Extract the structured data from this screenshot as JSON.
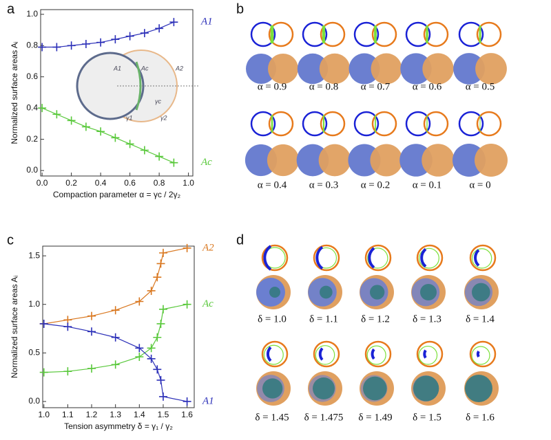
{
  "panel_letters": [
    "a",
    "b",
    "c",
    "d"
  ],
  "chart_data": [
    {
      "type": "line",
      "x_label": "Compaction parameter α = γc / 2γ₂",
      "y_label": "Normalized surface areas Aᵢ",
      "x": [
        0,
        0.1,
        0.2,
        0.3,
        0.4,
        0.5,
        0.6,
        0.7,
        0.8,
        0.9
      ],
      "series": [
        {
          "name": "A1",
          "color": "#2b2fb8",
          "values": [
            0.79,
            0.79,
            0.8,
            0.81,
            0.82,
            0.84,
            0.86,
            0.88,
            0.91,
            0.95
          ]
        },
        {
          "name": "Ac",
          "color": "#58c83a",
          "values": [
            0.4,
            0.36,
            0.32,
            0.28,
            0.25,
            0.21,
            0.17,
            0.13,
            0.09,
            0.05
          ]
        }
      ],
      "xlim": [
        -0.01,
        1.03
      ],
      "ylim": [
        -0.035,
        1.03
      ],
      "xticks": [
        {
          "value": 0,
          "label": "0.0"
        },
        {
          "value": 0.2,
          "label": "0.2"
        },
        {
          "value": 0.4,
          "label": "0.4"
        },
        {
          "value": 0.6,
          "label": "0.6"
        },
        {
          "value": 0.8,
          "label": "0.8"
        },
        {
          "value": 1,
          "label": "1.0"
        }
      ],
      "yticks": [
        {
          "value": 0,
          "label": "0.0"
        },
        {
          "value": 0.2,
          "label": "0.2"
        },
        {
          "value": 0.4,
          "label": "0.4"
        },
        {
          "value": 0.6,
          "label": "0.6"
        },
        {
          "value": 0.8,
          "label": "0.8"
        },
        {
          "value": 1,
          "label": "1.0"
        }
      ],
      "inset_labels": [
        "A1",
        "Ac",
        "A2",
        "γ1",
        "γc",
        "γ2"
      ]
    },
    {
      "type": "line",
      "x_label": "Tension asymmetry δ = γ₁ / γ₂",
      "y_label": "Normalized surface areas Aᵢ",
      "x": [
        1.0,
        1.1,
        1.2,
        1.3,
        1.4,
        1.45,
        1.475,
        1.49,
        1.5,
        1.6
      ],
      "series": [
        {
          "name": "A2",
          "color": "#d9771f",
          "values": [
            0.8,
            0.84,
            0.88,
            0.94,
            1.03,
            1.14,
            1.28,
            1.42,
            1.53,
            1.58
          ]
        },
        {
          "name": "Ac",
          "color": "#58c83a",
          "values": [
            0.3,
            0.31,
            0.34,
            0.38,
            0.46,
            0.55,
            0.66,
            0.8,
            0.95,
            1.0
          ]
        },
        {
          "name": "A1",
          "color": "#2b2fb8",
          "values": [
            0.8,
            0.77,
            0.72,
            0.66,
            0.55,
            0.44,
            0.33,
            0.22,
            0.05,
            0.0
          ]
        }
      ],
      "xlim": [
        0.995,
        1.63
      ],
      "ylim": [
        -0.064,
        1.6
      ],
      "xticks": [
        {
          "value": 1,
          "label": "1.0"
        },
        {
          "value": 1.1,
          "label": "1.1"
        },
        {
          "value": 1.2,
          "label": "1.2"
        },
        {
          "value": 1.3,
          "label": "1.3"
        },
        {
          "value": 1.4,
          "label": "1.4"
        },
        {
          "value": 1.5,
          "label": "1.5"
        },
        {
          "value": 1.6,
          "label": "1.6"
        }
      ],
      "yticks": [
        {
          "value": 0,
          "label": "0.0"
        },
        {
          "value": 0.5,
          "label": "0.5"
        },
        {
          "value": 1,
          "label": "1.0"
        },
        {
          "value": 1.5,
          "label": "1.5"
        }
      ]
    }
  ],
  "panel_b": {
    "labels": [
      "α = 0.9",
      "α = 0.8",
      "α = 0.7",
      "α = 0.6",
      "α = 0.5",
      "α = 0.4",
      "α = 0.3",
      "α = 0.2",
      "α = 0.1",
      "α = 0"
    ]
  },
  "panel_d": {
    "labels": [
      "δ = 1.0",
      "δ = 1.1",
      "δ = 1.2",
      "δ = 1.3",
      "δ = 1.4",
      "δ = 1.45",
      "δ = 1.475",
      "δ = 1.49",
      "δ = 1.5",
      "δ = 1.6"
    ]
  }
}
